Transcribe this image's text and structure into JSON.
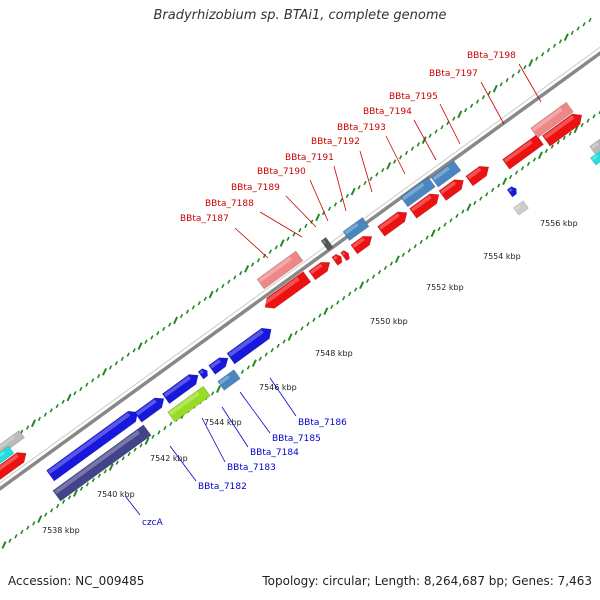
{
  "title": "Bradyrhizobium sp. BTAi1, complete genome",
  "footer": {
    "accession": "Accession: NC_009485",
    "topology": "Topology: circular; Length: 8,264,687 bp; Genes: 7,463"
  },
  "colors": {
    "backbone": "#888888",
    "red_gene": "#ee1111",
    "pink_gene": "#ee8888",
    "blue_gene": "#1818dd",
    "steel_gene": "#4a86c0",
    "navy_gene": "#43438a",
    "lime_gene": "#99dd22",
    "grey_gene": "#999999",
    "cyan_gene": "#22dddd",
    "tick": "#228822",
    "top_label": "#cc0000",
    "bottom_label": "#0000cc"
  },
  "kbp_ticks": [
    "7538 kbp",
    "7540 kbp",
    "7542 kbp",
    "7544 kbp",
    "7546 kbp",
    "7548 kbp",
    "7550 kbp",
    "7552 kbp",
    "7554 kbp",
    "7556 kbp"
  ],
  "top_genes": [
    "BBta_7187",
    "BBta_7188",
    "BBta_7189",
    "BBta_7190",
    "BBta_7191",
    "BBta_7192",
    "BBta_7193",
    "BBta_7194",
    "BBta_7195",
    "BBta_7197",
    "BBta_7198"
  ],
  "bottom_genes": [
    "czcA",
    "BBta_7182",
    "BBta_7183",
    "BBta_7184",
    "BBta_7185",
    "BBta_7186"
  ]
}
